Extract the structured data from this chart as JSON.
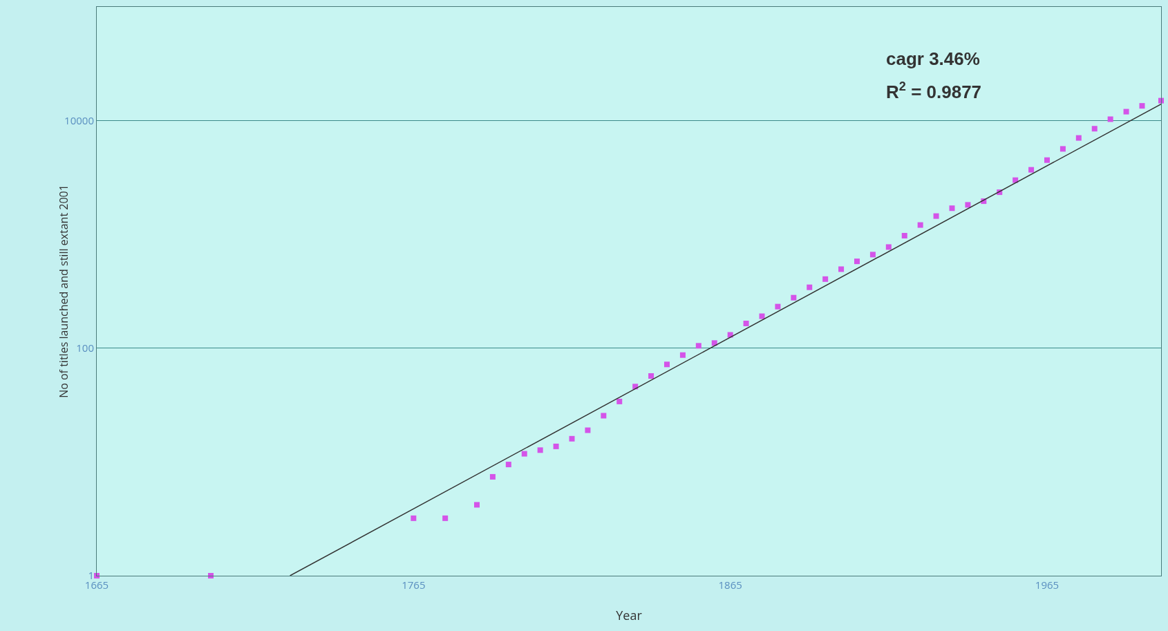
{
  "chart_data": {
    "type": "scatter",
    "xlabel": "Year",
    "ylabel": "No of titles launched and still extant 2001",
    "xlim": [
      1665,
      2001
    ],
    "xticks": [
      1665,
      1765,
      1865,
      1965
    ],
    "ylim": [
      1,
      100000
    ],
    "yticks": [
      1,
      100,
      10000
    ],
    "log": "y",
    "grid": "y",
    "marker": "square",
    "annotations": [
      "cagr 3.46%",
      "R$^{2}$ = 0.9877"
    ],
    "series": [
      {
        "color": "#d454e8",
        "x": [
          1665,
          1701,
          1765,
          1775,
          1785,
          1790,
          1795,
          1800,
          1805,
          1810,
          1815,
          1820,
          1825,
          1830,
          1835,
          1840,
          1845,
          1850,
          1855,
          1860,
          1865,
          1870,
          1875,
          1880,
          1885,
          1890,
          1895,
          1900,
          1905,
          1910,
          1915,
          1920,
          1925,
          1930,
          1935,
          1940,
          1945,
          1950,
          1955,
          1960,
          1965,
          1970,
          1975,
          1980,
          1985,
          1990,
          1995,
          2001
        ],
        "values": [
          1,
          1,
          3.2,
          3.2,
          4.2,
          7.4,
          9.5,
          11.8,
          12.7,
          13.7,
          16,
          19,
          25.5,
          34,
          46,
          57,
          72,
          87,
          105,
          111,
          131,
          165,
          191,
          232,
          278,
          343,
          405,
          495,
          580,
          665,
          775,
          975,
          1210,
          1450,
          1700,
          1820,
          1960,
          2350,
          3000,
          3700,
          4500,
          5650,
          7050,
          8500,
          10300,
          12000,
          13500,
          15000
        ]
      },
      {
        "type": "line",
        "color": "#333333",
        "line_style": "solid",
        "marker": "none",
        "x": [
          1726,
          2001
        ],
        "values": [
          1,
          14000
        ]
      }
    ]
  }
}
